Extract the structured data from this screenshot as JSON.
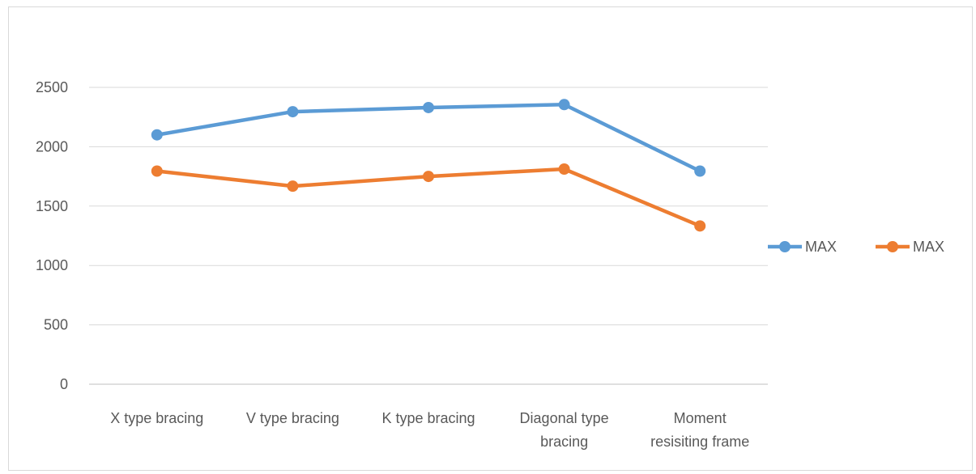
{
  "chart_data": {
    "type": "line",
    "title": "",
    "xlabel": "",
    "ylabel": "",
    "categories": [
      [
        "X type bracing"
      ],
      [
        "V type bracing"
      ],
      [
        "K type bracing"
      ],
      [
        "Diagonal type",
        "bracing"
      ],
      [
        "Moment",
        "resisiting frame"
      ]
    ],
    "series": [
      {
        "name": "MAX",
        "color": "#5b9bd5",
        "values": [
          2100,
          2295,
          2330,
          2355,
          1795
        ]
      },
      {
        "name": "MAX",
        "color": "#ed7d31",
        "values": [
          1795,
          1668,
          1750,
          1812,
          1333
        ]
      }
    ],
    "ylim": [
      0,
      2500
    ],
    "yticks": [
      0,
      500,
      1000,
      1500,
      2000,
      2500
    ],
    "grid": true,
    "legend_position": "right"
  }
}
